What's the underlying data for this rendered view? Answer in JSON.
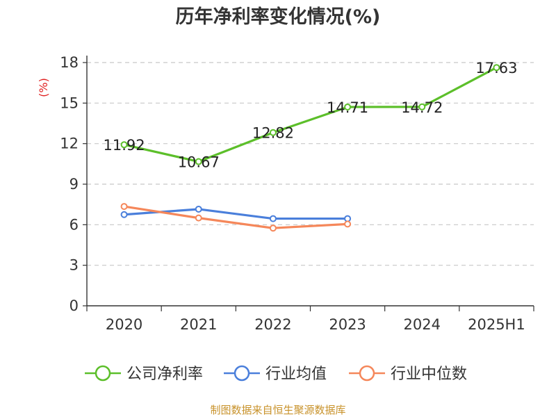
{
  "chart_data": {
    "type": "line",
    "title": "历年净利率变化情况(%)",
    "ylabel": "(%)",
    "xlabel": "",
    "categories": [
      "2020",
      "2021",
      "2022",
      "2023",
      "2024",
      "2025H1"
    ],
    "ylim": [
      0,
      18
    ],
    "yticks": [
      0,
      3,
      6,
      9,
      12,
      15,
      18
    ],
    "grid": true,
    "legend_position": "bottom",
    "series": [
      {
        "name": "公司净利率",
        "color": "#5cbf2a",
        "values": [
          11.92,
          10.67,
          12.82,
          14.71,
          14.72,
          17.63
        ],
        "labels": [
          "11.92",
          "10.67",
          "12.82",
          "14.71",
          "14.72",
          "17.63"
        ]
      },
      {
        "name": "行业均值",
        "color": "#4a7fdb",
        "values": [
          6.75,
          7.15,
          6.45,
          6.45,
          null,
          null
        ]
      },
      {
        "name": "行业中位数",
        "color": "#f5875a",
        "values": [
          7.35,
          6.5,
          5.75,
          6.05,
          null,
          null
        ]
      }
    ]
  },
  "source": "制图数据来自恒生聚源数据库"
}
